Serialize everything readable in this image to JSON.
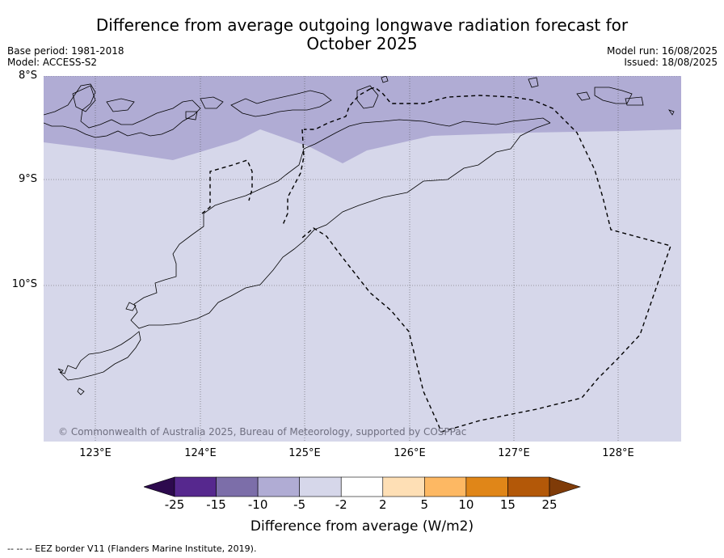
{
  "title": {
    "line1": "Difference from average outgoing longwave radiation forecast for",
    "line2": "October 2025"
  },
  "meta_left": {
    "base_period": "Base period: 1981-2018",
    "model": "Model: ACCESS-S2"
  },
  "meta_right": {
    "model_run": "Model run: 16/08/2025",
    "issued": "Issued: 18/08/2025"
  },
  "map": {
    "lat_ticks": [
      {
        "label": "8°S",
        "value": -8
      },
      {
        "label": "9°S",
        "value": -9
      },
      {
        "label": "10°S",
        "value": -10
      }
    ],
    "lon_ticks": [
      {
        "label": "123°E",
        "value": 123
      },
      {
        "label": "124°E",
        "value": 124
      },
      {
        "label": "125°E",
        "value": 125
      },
      {
        "label": "126°E",
        "value": 126
      },
      {
        "label": "127°E",
        "value": 127
      },
      {
        "label": "128°E",
        "value": 128
      }
    ],
    "extent": {
      "lon_min": 122.5,
      "lon_max": 128.6,
      "lat_min": -11.5,
      "lat_max": -8.0
    },
    "copyright": "© Commonwealth of Australia 2025, Bureau of Meteorology, supported by COSPPac",
    "field_colors": {
      "north_band": "#b0acd4",
      "background": "#d6d7ea"
    }
  },
  "colorbar": {
    "ticks": [
      "-25",
      "-15",
      "-10",
      "-5",
      "-2",
      "2",
      "5",
      "10",
      "15",
      "25"
    ],
    "colors": [
      "#56288e",
      "#7c6ea9",
      "#b0acd4",
      "#d6d7ea",
      "#ffffff",
      "#fedfb5",
      "#fdb863",
      "#e08618",
      "#b35808"
    ],
    "extend_low": "#2d0a4e",
    "extend_high": "#7f3b08",
    "label": "Difference from average (W/m2)"
  },
  "footnote": "--  --  -- EEZ border V11 (Flanders Marine Institute, 2019)."
}
